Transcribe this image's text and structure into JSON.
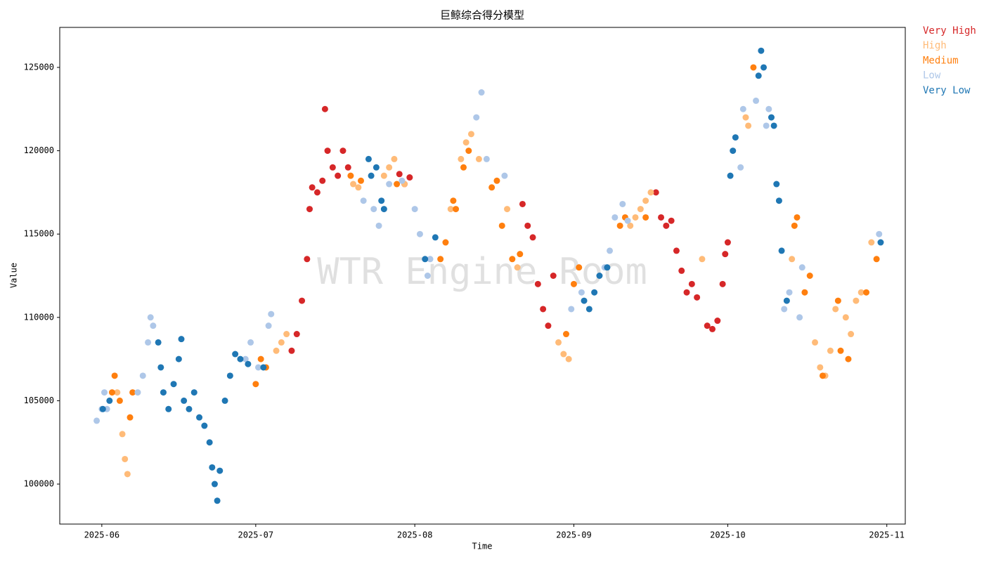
{
  "chart_data": {
    "type": "scatter",
    "title": "巨鲸综合得分模型",
    "x_label": "Time",
    "y_label": "Value",
    "watermark": "WTR Engine Room",
    "xlim": [
      -8.2,
      156.6
    ],
    "xticks": [
      {
        "value": 0,
        "label": "2025-06"
      },
      {
        "value": 30,
        "label": "2025-07"
      },
      {
        "value": 61,
        "label": "2025-08"
      },
      {
        "value": 92,
        "label": "2025-09"
      },
      {
        "value": 122,
        "label": "2025-10"
      },
      {
        "value": 153,
        "label": "2025-11"
      }
    ],
    "ylim": [
      97600,
      127400
    ],
    "yticks": [
      100000,
      105000,
      110000,
      115000,
      120000,
      125000
    ],
    "legend_position": "outside-top-right",
    "series": [
      {
        "name": "Very High",
        "color": "#d62728",
        "x": [
          37,
          38,
          39,
          40,
          40.5,
          41,
          42,
          43,
          43.5,
          44,
          45,
          46,
          47,
          48,
          58,
          59,
          60,
          82,
          83,
          84,
          85,
          86,
          87,
          88,
          108,
          109,
          110,
          111,
          112,
          113,
          114,
          115,
          116,
          118,
          119,
          120,
          121,
          121.5,
          122
        ],
        "values": [
          108000,
          109000,
          111000,
          113500,
          116500,
          117800,
          117500,
          118200,
          122500,
          120000,
          119000,
          118500,
          120000,
          119000,
          118600,
          118000,
          118400,
          116800,
          115500,
          114800,
          112000,
          110500,
          109500,
          112500,
          117500,
          116000,
          115500,
          115800,
          114000,
          112800,
          111500,
          112000,
          111200,
          109500,
          109300,
          109800,
          112000,
          113800,
          114500
        ]
      },
      {
        "name": "High",
        "color": "#ffbb78",
        "x": [
          3,
          4,
          4.5,
          5,
          34,
          35,
          36,
          49,
          50,
          55,
          56,
          57,
          59,
          68,
          70,
          71,
          72,
          73.5,
          79,
          81,
          89,
          90,
          91,
          103,
          104,
          105,
          106,
          107,
          117,
          125.5,
          126,
          134.5,
          139,
          140,
          141,
          142,
          143,
          145,
          146,
          147,
          148,
          150
        ],
        "values": [
          105500,
          103000,
          101500,
          100600,
          108000,
          108500,
          109000,
          118000,
          117800,
          118500,
          119000,
          119500,
          118000,
          116500,
          119500,
          120500,
          121000,
          119500,
          116500,
          113000,
          108500,
          107800,
          107500,
          115500,
          116000,
          116500,
          117000,
          117500,
          113500,
          122000,
          121500,
          113500,
          108500,
          107000,
          106500,
          108000,
          110500,
          110000,
          109000,
          111000,
          111500,
          114500
        ]
      },
      {
        "name": "Medium",
        "color": "#ff7f0e",
        "x": [
          2,
          2.5,
          3.5,
          5.5,
          6,
          30,
          31,
          32,
          48.5,
          50.5,
          57.5,
          66,
          67,
          68.5,
          69,
          70.5,
          71.5,
          76,
          77,
          78,
          80,
          81.5,
          90.5,
          92,
          93,
          101,
          102,
          106,
          127,
          135,
          135.5,
          137,
          138,
          140.5,
          143.5,
          144,
          145.5,
          149,
          151
        ],
        "values": [
          105500,
          106500,
          105000,
          104000,
          105500,
          106000,
          107500,
          107000,
          118500,
          118200,
          118000,
          113500,
          114500,
          117000,
          116500,
          119000,
          120000,
          117800,
          118200,
          115500,
          113500,
          113800,
          109000,
          112000,
          113000,
          115500,
          116000,
          116000,
          125000,
          115500,
          116000,
          111500,
          112500,
          106500,
          111000,
          108000,
          107500,
          111500,
          113500
        ]
      },
      {
        "name": "Low",
        "color": "#aec7e8",
        "x": [
          -1,
          0,
          0.5,
          1,
          7,
          8,
          9,
          9.5,
          10,
          28,
          29,
          30.5,
          32.5,
          33,
          51,
          53,
          54,
          56,
          58.5,
          61,
          62,
          63.5,
          64,
          73,
          74,
          75,
          78.5,
          91.5,
          93.5,
          98,
          99,
          100,
          101.5,
          102.5,
          124.5,
          125,
          127.5,
          129.5,
          130,
          133,
          134,
          136,
          136.5,
          151.5
        ],
        "values": [
          103800,
          104500,
          105500,
          104500,
          105500,
          106500,
          108500,
          110000,
          109500,
          107500,
          108500,
          107000,
          109500,
          110200,
          117000,
          116500,
          115500,
          118000,
          118200,
          116500,
          115000,
          112500,
          113500,
          122000,
          123500,
          119500,
          118500,
          110500,
          111500,
          113000,
          114000,
          116000,
          116800,
          115800,
          119000,
          122500,
          123000,
          121500,
          122500,
          110500,
          111500,
          110000,
          113000,
          115000
        ]
      },
      {
        "name": "Very Low",
        "color": "#1f77b4",
        "x": [
          0.2,
          1.5,
          11,
          11.5,
          12,
          13,
          14,
          15,
          15.5,
          16,
          17,
          18,
          19,
          20,
          21,
          21.5,
          22,
          22.5,
          23,
          24,
          25,
          26,
          27,
          28.5,
          31.5,
          52,
          52.5,
          53.5,
          54.5,
          55,
          63,
          65,
          94,
          95,
          96,
          97,
          98.5,
          122.5,
          123,
          123.5,
          128,
          128.5,
          129,
          130.5,
          131,
          131.5,
          132,
          132.5,
          133.5,
          151.8
        ],
        "values": [
          104500,
          105000,
          108500,
          107000,
          105500,
          104500,
          106000,
          107500,
          108700,
          105000,
          104500,
          105500,
          104000,
          103500,
          102500,
          101000,
          100000,
          99000,
          100800,
          105000,
          106500,
          107800,
          107500,
          107200,
          107000,
          119500,
          118500,
          119000,
          117000,
          116500,
          113500,
          114800,
          111000,
          110500,
          111500,
          112500,
          113000,
          118500,
          120000,
          120800,
          124500,
          126000,
          125000,
          122000,
          121500,
          118000,
          117000,
          114000,
          111000,
          114500
        ]
      }
    ]
  }
}
